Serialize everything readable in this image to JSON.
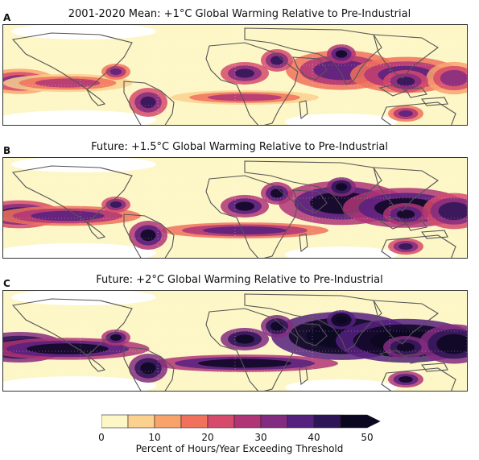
{
  "panels": [
    {
      "letter": "A",
      "title": "2001-2020 Mean: +1°C Global Warming Relative to Pre-Industrial",
      "intensity": 1
    },
    {
      "letter": "B",
      "title": "Future: +1.5°C Global Warming Relative to Pre-Industrial",
      "intensity": 2
    },
    {
      "letter": "C",
      "title": "Future: +2°C Global Warming Relative to Pre-Industrial",
      "intensity": 3
    }
  ],
  "colorbar": {
    "label": "Percent of Hours/Year Exceeding Threshold",
    "ticks": [
      "0",
      "10",
      "20",
      "30",
      "40",
      "50"
    ],
    "levels": [
      0,
      5,
      10,
      15,
      20,
      25,
      30,
      35,
      40,
      45,
      50
    ],
    "colors": [
      "#fdf6c6",
      "#fcd08e",
      "#f9a36c",
      "#f0725c",
      "#d64a6c",
      "#b03577",
      "#832b80",
      "#56207f",
      "#2e1557",
      "#0c0721"
    ]
  }
}
